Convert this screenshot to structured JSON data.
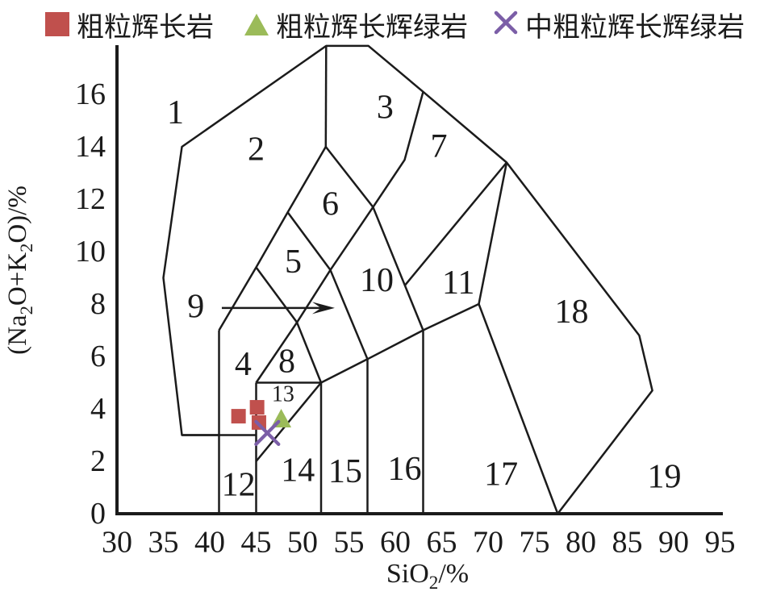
{
  "legend": {
    "items": [
      {
        "label": "粗粒辉长岩",
        "marker": "square",
        "color": "#C0504D"
      },
      {
        "label": "粗粒辉长辉绿岩",
        "marker": "triangle",
        "color": "#9BBB59"
      },
      {
        "label": "中粗粒辉长辉绿岩",
        "marker": "cross",
        "color": "#7B5EA7"
      }
    ]
  },
  "chart_data": {
    "type": "scatter",
    "title": "",
    "xlabel": "SiO2/%",
    "ylabel": "(Na2O+K2O)/%",
    "xlabel_parts": [
      {
        "t": "SiO"
      },
      {
        "t": "2",
        "sub": true
      },
      {
        "t": "/%"
      }
    ],
    "ylabel_parts": [
      {
        "t": "(Na"
      },
      {
        "t": "2",
        "sub": true
      },
      {
        "t": "O+K"
      },
      {
        "t": "2",
        "sub": true
      },
      {
        "t": "O)/%"
      }
    ],
    "xlim": [
      30,
      95
    ],
    "ylim": [
      0,
      18
    ],
    "x_ticks": [
      30,
      35,
      40,
      45,
      50,
      55,
      60,
      65,
      70,
      75,
      80,
      85,
      90,
      95
    ],
    "y_ticks": [
      0,
      2,
      4,
      6,
      8,
      10,
      12,
      14,
      16
    ],
    "grid": false,
    "legend_position": "top",
    "line_color": "#1b1b1b",
    "axis_color": "#1b1b1b",
    "series": [
      {
        "name": "粗粒辉长岩",
        "marker": "square",
        "color": "#C0504D",
        "points": [
          [
            43.1,
            3.72
          ],
          [
            45.1,
            4.06
          ],
          [
            45.3,
            3.48
          ]
        ]
      },
      {
        "name": "粗粒辉长辉绿岩",
        "marker": "triangle",
        "color": "#9BBB59",
        "points": [
          [
            47.7,
            3.63
          ]
        ]
      },
      {
        "name": "中粗粒辉长辉绿岩",
        "marker": "cross",
        "color": "#7B5EA7",
        "points": [
          [
            46.2,
            3.08
          ]
        ]
      }
    ],
    "field_labels": [
      {
        "n": "1",
        "x": 36.3,
        "y": 15.3
      },
      {
        "n": "2",
        "x": 45.0,
        "y": 13.9
      },
      {
        "n": "3",
        "x": 58.9,
        "y": 15.5
      },
      {
        "n": "4",
        "x": 43.6,
        "y": 5.7
      },
      {
        "n": "5",
        "x": 49.0,
        "y": 9.6
      },
      {
        "n": "6",
        "x": 53.0,
        "y": 11.8
      },
      {
        "n": "7",
        "x": 64.7,
        "y": 14.0
      },
      {
        "n": "8",
        "x": 48.3,
        "y": 5.8
      },
      {
        "n": "9",
        "x": 38.5,
        "y": 7.9
      },
      {
        "n": "10",
        "x": 58.0,
        "y": 8.9
      },
      {
        "n": "11",
        "x": 66.8,
        "y": 8.8
      },
      {
        "n": "12",
        "x": 43.1,
        "y": 1.1
      },
      {
        "n": "13",
        "x": 47.9,
        "y": 4.55,
        "small": true
      },
      {
        "n": "14",
        "x": 49.5,
        "y": 1.65
      },
      {
        "n": "15",
        "x": 54.6,
        "y": 1.6
      },
      {
        "n": "16",
        "x": 61.0,
        "y": 1.7
      },
      {
        "n": "17",
        "x": 71.4,
        "y": 1.5
      },
      {
        "n": "18",
        "x": 79.0,
        "y": 7.7
      },
      {
        "n": "19",
        "x": 89.0,
        "y": 1.4
      }
    ],
    "boundaries": [
      [
        [
          41,
          0
        ],
        [
          41,
          7
        ]
      ],
      [
        [
          45,
          0
        ],
        [
          45,
          5
        ]
      ],
      [
        [
          52,
          0
        ],
        [
          52,
          5
        ]
      ],
      [
        [
          57,
          0
        ],
        [
          57,
          5.9
        ]
      ],
      [
        [
          63,
          0
        ],
        [
          63,
          7
        ]
      ],
      [
        [
          52.55,
          17.85
        ],
        [
          52.5,
          14
        ]
      ],
      [
        [
          37,
          3
        ],
        [
          45,
          3
        ]
      ],
      [
        [
          45,
          5
        ],
        [
          52,
          5
        ]
      ],
      [
        [
          45,
          2
        ],
        [
          52,
          5
        ]
      ],
      [
        [
          52,
          5
        ],
        [
          57,
          5.9
        ]
      ],
      [
        [
          57,
          5.9
        ],
        [
          63,
          7
        ]
      ],
      [
        [
          63,
          7
        ],
        [
          69,
          8
        ]
      ],
      [
        [
          69,
          8
        ],
        [
          77.5,
          0
        ]
      ],
      [
        [
          69,
          8
        ],
        [
          72,
          13.4
        ]
      ],
      [
        [
          61,
          8.7
        ],
        [
          72,
          13.4
        ]
      ],
      [
        [
          41,
          7
        ],
        [
          45,
          9.4
        ],
        [
          48.4,
          11.5
        ],
        [
          52.5,
          14
        ]
      ],
      [
        [
          45,
          5
        ],
        [
          49.4,
          7.3
        ],
        [
          53,
          9.3
        ],
        [
          57.6,
          11.7
        ],
        [
          61,
          13.5
        ],
        [
          63,
          16.1
        ]
      ],
      [
        [
          45,
          9.4
        ],
        [
          49.4,
          7.3
        ],
        [
          52,
          5
        ]
      ],
      [
        [
          48.4,
          11.5
        ],
        [
          53,
          9.3
        ]
      ],
      [
        [
          52.5,
          14
        ],
        [
          57.6,
          11.7
        ]
      ],
      [
        [
          53,
          9.3
        ],
        [
          57,
          5.9
        ]
      ],
      [
        [
          57.6,
          11.7
        ],
        [
          63,
          7
        ]
      ],
      [
        [
          41,
          3
        ],
        [
          37,
          3
        ],
        [
          35,
          9
        ],
        [
          37,
          14
        ],
        [
          52.55,
          17.85
        ],
        [
          57.1,
          17.85
        ],
        [
          63,
          16.1
        ],
        [
          72,
          13.4
        ],
        [
          86.3,
          6.8
        ],
        [
          87.7,
          4.7
        ],
        [
          77.5,
          0
        ]
      ]
    ],
    "arrow": {
      "from": [
        41.3,
        7.85
      ],
      "to": [
        53.3,
        7.85
      ]
    }
  }
}
